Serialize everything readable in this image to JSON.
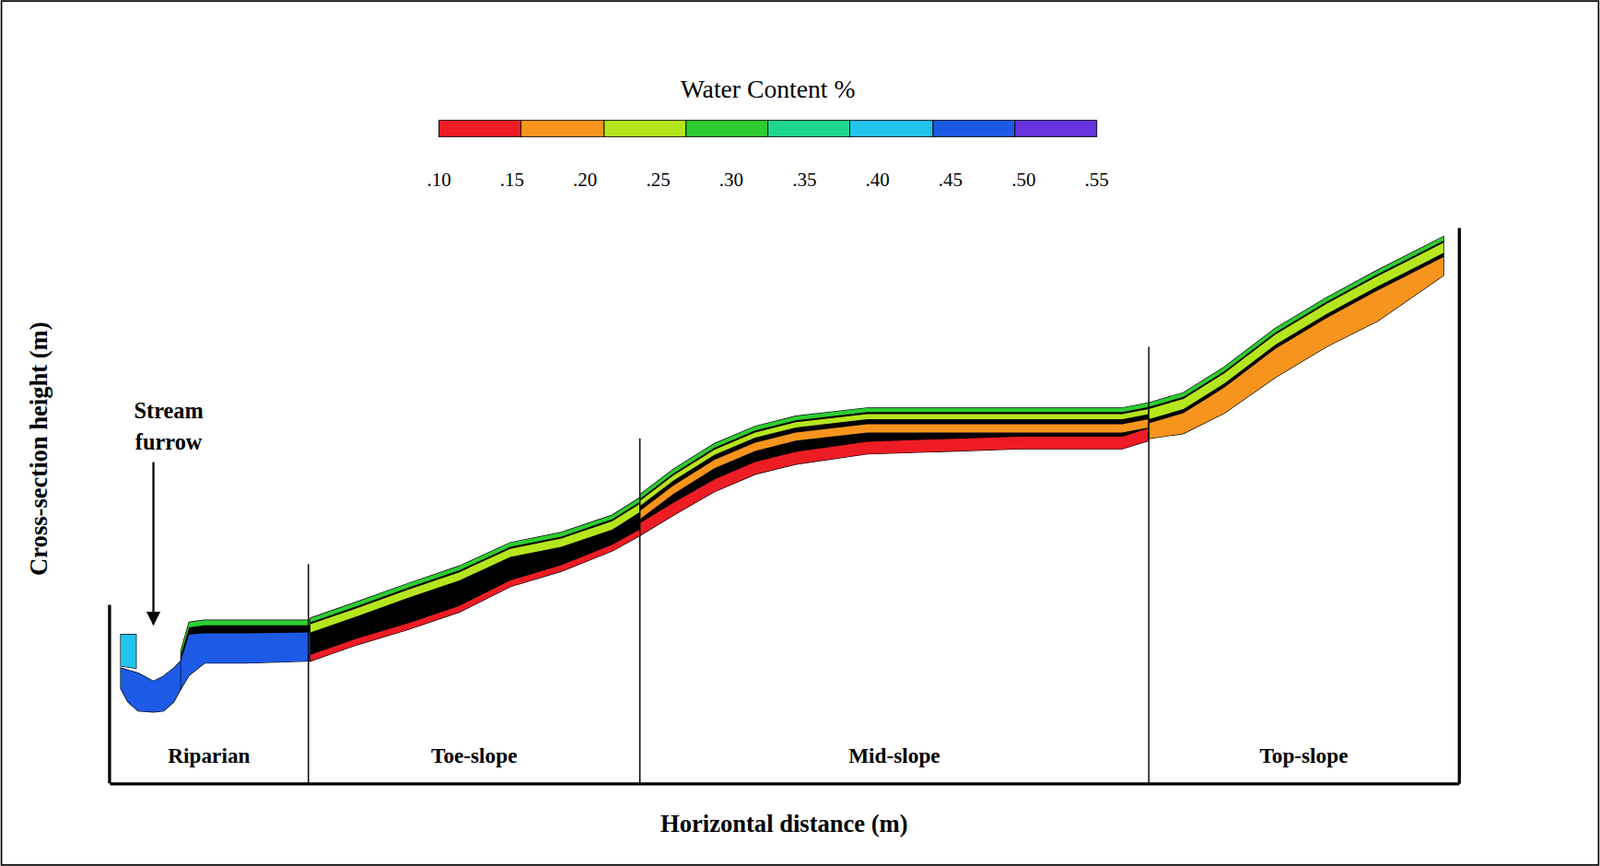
{
  "chart_data": {
    "type": "cross_section",
    "xlabel": "Horizontal distance (m)",
    "ylabel": "Cross-section height (m)",
    "xlim": [
      0,
      132.3
    ],
    "ylim": [
      0,
      54.5
    ],
    "tick_labels": false,
    "colorbar": {
      "title": "Water Content %",
      "range": [
        0.1,
        0.55
      ],
      "bins": [
        0.1,
        0.156,
        0.213,
        0.269,
        0.325,
        0.381,
        0.438,
        0.494,
        0.55
      ],
      "colors": [
        "#ee1c24",
        "#f7941d",
        "#b5e61d",
        "#2ecc32",
        "#1fd88e",
        "#22c4ee",
        "#1d5be6",
        "#6633dd"
      ],
      "ticks": [
        {
          "value": 0.1,
          "label": ".10"
        },
        {
          "value": 0.15,
          "label": ".15"
        },
        {
          "value": 0.2,
          "label": ".20"
        },
        {
          "value": 0.25,
          "label": ".25"
        },
        {
          "value": 0.3,
          "label": ".30"
        },
        {
          "value": 0.35,
          "label": ".35"
        },
        {
          "value": 0.4,
          "label": ".40"
        },
        {
          "value": 0.45,
          "label": ".45"
        },
        {
          "value": 0.5,
          "label": ".50"
        },
        {
          "value": 0.55,
          "label": ".55"
        }
      ]
    },
    "zones": [
      {
        "label": "Riparian",
        "start": 0,
        "end": 19.5
      },
      {
        "label": "Toe-slope",
        "start": 19.5,
        "end": 52.0
      },
      {
        "label": "Mid-slope",
        "start": 52.0,
        "end": 101.9
      },
      {
        "label": "Top-slope",
        "start": 101.9,
        "end": 132.3
      }
    ],
    "annotation": {
      "text": "Stream furrow",
      "x": 4.3,
      "y": 15.6
    },
    "sections": [
      {
        "x": [
          1.1,
          2.6
        ],
        "bands": [
          {
            "value": 0.4,
            "top": [
              14.6,
              14.6
            ],
            "bottom": [
              11.5,
              11.3
            ]
          }
        ]
      },
      {
        "x": [
          1.1,
          1.8,
          2.8,
          4.3,
          5.3,
          6.3,
          7.0
        ],
        "bands": [
          {
            "value": 0.46,
            "top": [
              11.3,
              11.1,
              10.8,
              10.0,
              10.5,
              11.3,
              12.0
            ],
            "bottom": [
              9.3,
              8.0,
              7.1,
              7.0,
              7.1,
              8.0,
              9.3
            ]
          }
        ]
      },
      {
        "x": [
          7.0,
          7.8,
          9.3,
          13.3,
          19.7
        ],
        "bands": [
          {
            "value": 0.28,
            "top": [
              13.0,
              15.8,
              16.0,
              16.0,
              16.0
            ],
            "bottom": [
              12.6,
              15.3,
              15.5,
              15.5,
              15.5
            ]
          },
          {
            "value": 0.46,
            "top": [
              12.0,
              14.6,
              14.7,
              14.7,
              14.8
            ],
            "bottom": [
              9.3,
              10.6,
              11.8,
              11.8,
              12.0
            ]
          }
        ]
      },
      {
        "x": [
          19.7,
          24.3,
          29.3,
          34.3,
          39.3,
          44.3,
          49.3,
          52.0
        ],
        "bands": [
          {
            "value": 0.28,
            "top": [
              16.2,
              17.8,
              19.6,
              21.3,
              23.6,
              24.6,
              26.3,
              28.0
            ],
            "bottom": [
              15.8,
              17.4,
              19.2,
              20.9,
              23.2,
              24.2,
              25.9,
              27.6
            ]
          },
          {
            "value": 0.23,
            "top": [
              15.6,
              17.2,
              19.0,
              20.7,
              23.0,
              24.0,
              25.7,
              27.4
            ],
            "bottom": [
              14.8,
              16.4,
              18.2,
              19.9,
              22.2,
              23.2,
              24.9,
              26.6
            ]
          },
          {
            "value": 0.13,
            "top": [
              12.6,
              14.2,
              15.7,
              17.4,
              19.9,
              21.4,
              23.4,
              24.9
            ],
            "bottom": [
              12.0,
              13.6,
              15.1,
              16.8,
              19.3,
              20.8,
              22.8,
              24.3
            ]
          }
        ]
      },
      {
        "x": [
          52.0,
          55.3,
          59.3,
          63.3,
          67.3,
          74.3,
          89.3,
          99.3,
          101.9
        ],
        "bands": [
          {
            "value": 0.28,
            "top": [
              28.3,
              30.8,
              33.3,
              35.0,
              36.0,
              36.8,
              36.8,
              36.8,
              37.3
            ],
            "bottom": [
              27.9,
              30.4,
              32.9,
              34.6,
              35.6,
              36.4,
              36.4,
              36.4,
              36.9
            ]
          },
          {
            "value": 0.23,
            "top": [
              27.7,
              30.2,
              32.7,
              34.4,
              35.4,
              36.2,
              36.2,
              36.2,
              36.7
            ],
            "bottom": [
              27.2,
              29.7,
              32.2,
              33.9,
              34.9,
              35.7,
              35.7,
              35.7,
              36.2
            ]
          },
          {
            "value": 0.18,
            "top": [
              26.7,
              29.2,
              31.7,
              33.4,
              34.4,
              35.2,
              35.2,
              35.2,
              35.7
            ],
            "bottom": [
              25.9,
              28.4,
              30.9,
              32.6,
              33.6,
              34.4,
              34.4,
              34.4,
              34.9
            ]
          },
          {
            "value": 0.13,
            "top": [
              25.5,
              27.5,
              29.8,
              31.5,
              32.5,
              33.5,
              34.0,
              34.0,
              34.8
            ],
            "bottom": [
              24.3,
              26.3,
              28.6,
              30.3,
              31.3,
              32.3,
              32.8,
              32.8,
              33.6
            ]
          }
        ]
      },
      {
        "x": [
          101.9,
          105.3,
          109.3,
          114.3,
          119.3,
          124.3,
          130.8
        ],
        "bands": [
          {
            "value": 0.28,
            "top": [
              37.3,
              38.3,
              40.8,
              44.6,
              47.6,
              50.3,
              53.6
            ],
            "bottom": [
              36.9,
              37.9,
              40.4,
              44.2,
              47.2,
              49.9,
              53.2
            ]
          },
          {
            "value": 0.23,
            "top": [
              36.7,
              37.7,
              40.2,
              44.0,
              47.0,
              49.7,
              53.0
            ],
            "bottom": [
              35.7,
              36.7,
              39.2,
              43.0,
              46.0,
              48.7,
              52.0
            ]
          },
          {
            "value": 0.18,
            "top": [
              35.3,
              36.3,
              38.8,
              42.6,
              45.6,
              48.3,
              51.6
            ],
            "bottom": [
              33.8,
              34.3,
              36.3,
              39.8,
              42.8,
              45.3,
              49.8
            ]
          }
        ]
      }
    ]
  }
}
